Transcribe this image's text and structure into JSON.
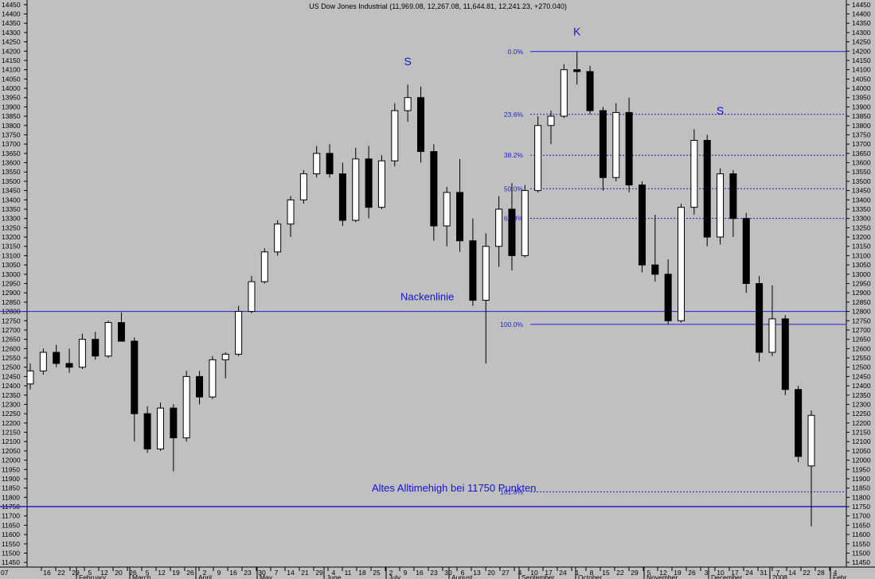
{
  "chart_data": {
    "type": "candlestick",
    "title": "US Dow Jones Industrial (11,969.08, 12,267.08, 11,644.81, 12,241.23, +270.040)",
    "x_start_label": "07",
    "ylim": [
      11425,
      14475
    ],
    "y_ticks": [
      11450,
      11500,
      11550,
      11600,
      11650,
      11700,
      11750,
      11800,
      11850,
      11900,
      11950,
      12000,
      12050,
      12100,
      12150,
      12200,
      12250,
      12300,
      12350,
      12400,
      12450,
      12500,
      12550,
      12600,
      12650,
      12700,
      12750,
      12800,
      12850,
      12900,
      12950,
      13000,
      13050,
      13100,
      13150,
      13200,
      13250,
      13300,
      13350,
      13400,
      13450,
      13500,
      13550,
      13600,
      13650,
      13700,
      13750,
      13800,
      13850,
      13900,
      13950,
      14000,
      14050,
      14100,
      14150,
      14200,
      14250,
      14300,
      14350,
      14400,
      14450
    ],
    "day_ticks": [
      "16",
      "22",
      "29",
      "5",
      "12",
      "20",
      "26",
      "5",
      "12",
      "19",
      "26",
      "2",
      "9",
      "16",
      "23",
      "30",
      "7",
      "14",
      "21",
      "29",
      "4",
      "11",
      "18",
      "25",
      "2",
      "9",
      "16",
      "23",
      "30",
      "6",
      "13",
      "20",
      "27",
      "4",
      "10",
      "17",
      "24",
      "1",
      "8",
      "15",
      "22",
      "29",
      "5",
      "12",
      "19",
      "26",
      "3",
      "10",
      "17",
      "24",
      "31",
      "7",
      "14",
      "22",
      "28",
      "4"
    ],
    "month_labels": [
      "February",
      "March",
      "April",
      "May",
      "June",
      "July",
      "August",
      "September",
      "October",
      "November",
      "December",
      "2008",
      "Febr"
    ],
    "weekly": [
      {
        "o": 12410,
        "h": 12520,
        "l": 12380,
        "c": 12480
      },
      {
        "o": 12480,
        "h": 12600,
        "l": 12460,
        "c": 12580
      },
      {
        "o": 12580,
        "h": 12620,
        "l": 12500,
        "c": 12520
      },
      {
        "o": 12520,
        "h": 12600,
        "l": 12470,
        "c": 12500
      },
      {
        "o": 12500,
        "h": 12680,
        "l": 12490,
        "c": 12650
      },
      {
        "o": 12650,
        "h": 12690,
        "l": 12540,
        "c": 12560
      },
      {
        "o": 12560,
        "h": 12750,
        "l": 12550,
        "c": 12740
      },
      {
        "o": 12740,
        "h": 12795,
        "l": 12690,
        "c": 12640
      },
      {
        "o": 12640,
        "h": 12660,
        "l": 12100,
        "c": 12250
      },
      {
        "o": 12250,
        "h": 12290,
        "l": 12040,
        "c": 12060
      },
      {
        "o": 12060,
        "h": 12310,
        "l": 12050,
        "c": 12280
      },
      {
        "o": 12280,
        "h": 12300,
        "l": 11940,
        "c": 12120
      },
      {
        "o": 12120,
        "h": 12480,
        "l": 12100,
        "c": 12450
      },
      {
        "o": 12450,
        "h": 12480,
        "l": 12300,
        "c": 12340
      },
      {
        "o": 12340,
        "h": 12560,
        "l": 12330,
        "c": 12540
      },
      {
        "o": 12540,
        "h": 12580,
        "l": 12440,
        "c": 12570
      },
      {
        "o": 12570,
        "h": 12830,
        "l": 12560,
        "c": 12800
      },
      {
        "o": 12800,
        "h": 12990,
        "l": 12790,
        "c": 12960
      },
      {
        "o": 12960,
        "h": 13140,
        "l": 12950,
        "c": 13120
      },
      {
        "o": 13120,
        "h": 13290,
        "l": 13100,
        "c": 13270
      },
      {
        "o": 13270,
        "h": 13420,
        "l": 13200,
        "c": 13400
      },
      {
        "o": 13400,
        "h": 13560,
        "l": 13380,
        "c": 13540
      },
      {
        "o": 13540,
        "h": 13690,
        "l": 13520,
        "c": 13650
      },
      {
        "o": 13650,
        "h": 13700,
        "l": 13520,
        "c": 13540
      },
      {
        "o": 13540,
        "h": 13600,
        "l": 13260,
        "c": 13290
      },
      {
        "o": 13290,
        "h": 13680,
        "l": 13280,
        "c": 13620
      },
      {
        "o": 13620,
        "h": 13690,
        "l": 13300,
        "c": 13360
      },
      {
        "o": 13360,
        "h": 13640,
        "l": 13350,
        "c": 13610
      },
      {
        "o": 13610,
        "h": 13920,
        "l": 13580,
        "c": 13880
      },
      {
        "o": 13880,
        "h": 14020,
        "l": 13820,
        "c": 13950
      },
      {
        "o": 13950,
        "h": 14010,
        "l": 13600,
        "c": 13660
      },
      {
        "o": 13660,
        "h": 13700,
        "l": 13180,
        "c": 13260
      },
      {
        "o": 13260,
        "h": 13470,
        "l": 13150,
        "c": 13440
      },
      {
        "o": 13440,
        "h": 13620,
        "l": 13120,
        "c": 13180
      },
      {
        "o": 13180,
        "h": 13300,
        "l": 12830,
        "c": 12860
      },
      {
        "o": 12860,
        "h": 13220,
        "l": 12520,
        "c": 13150
      },
      {
        "o": 13150,
        "h": 13420,
        "l": 13040,
        "c": 13350
      },
      {
        "o": 13350,
        "h": 13490,
        "l": 13020,
        "c": 13100
      },
      {
        "o": 13100,
        "h": 13480,
        "l": 13090,
        "c": 13450
      },
      {
        "o": 13450,
        "h": 13850,
        "l": 13440,
        "c": 13800
      },
      {
        "o": 13800,
        "h": 13880,
        "l": 13700,
        "c": 13850
      },
      {
        "o": 13850,
        "h": 14130,
        "l": 13840,
        "c": 14100
      },
      {
        "o": 14100,
        "h": 14198,
        "l": 14020,
        "c": 14090
      },
      {
        "o": 14090,
        "h": 14120,
        "l": 13860,
        "c": 13880
      },
      {
        "o": 13880,
        "h": 13900,
        "l": 13450,
        "c": 13520
      },
      {
        "o": 13520,
        "h": 13920,
        "l": 13500,
        "c": 13870
      },
      {
        "o": 13870,
        "h": 13950,
        "l": 13440,
        "c": 13480
      },
      {
        "o": 13480,
        "h": 13500,
        "l": 13010,
        "c": 13050
      },
      {
        "o": 13050,
        "h": 13320,
        "l": 12960,
        "c": 13000
      },
      {
        "o": 13000,
        "h": 13080,
        "l": 12730,
        "c": 12750
      },
      {
        "o": 12750,
        "h": 13380,
        "l": 12740,
        "c": 13360
      },
      {
        "o": 13360,
        "h": 13780,
        "l": 13320,
        "c": 13720
      },
      {
        "o": 13720,
        "h": 13750,
        "l": 13150,
        "c": 13200
      },
      {
        "o": 13200,
        "h": 13570,
        "l": 13160,
        "c": 13540
      },
      {
        "o": 13540,
        "h": 13560,
        "l": 13200,
        "c": 13300
      },
      {
        "o": 13300,
        "h": 13330,
        "l": 12900,
        "c": 12950
      },
      {
        "o": 12950,
        "h": 12990,
        "l": 12530,
        "c": 12580
      },
      {
        "o": 12580,
        "h": 12940,
        "l": 12560,
        "c": 12760
      },
      {
        "o": 12760,
        "h": 12780,
        "l": 12350,
        "c": 12380
      },
      {
        "o": 12380,
        "h": 12400,
        "l": 11990,
        "c": 12020
      },
      {
        "o": 11969,
        "h": 12267,
        "l": 11645,
        "c": 12241
      }
    ],
    "fibonacci": [
      {
        "label": "0.0%",
        "value": 14198
      },
      {
        "label": "23.6%",
        "value": 13860
      },
      {
        "label": "38.2%",
        "value": 13640
      },
      {
        "label": "50.0%",
        "value": 13460
      },
      {
        "label": "61.8%",
        "value": 13300
      },
      {
        "label": "100.0%",
        "value": 12730
      },
      {
        "label": "161.8%",
        "value": 11830
      }
    ],
    "lines": [
      {
        "name": "Nackenlinie",
        "value": 12800
      },
      {
        "name": "Altes Alltimehigh bei 11750 Punkten",
        "value": 11750
      }
    ],
    "annotations": [
      {
        "text": "S",
        "index": 29,
        "value": 14125
      },
      {
        "text": "K",
        "index": 42,
        "value": 14285
      },
      {
        "text": "S",
        "index": 53,
        "value": 13860
      }
    ],
    "colors": {
      "background": "#c0c0c0",
      "candle": "#000000",
      "line": "#1f1fd6",
      "annotation": "#1414d0",
      "axis": "#000000"
    }
  }
}
